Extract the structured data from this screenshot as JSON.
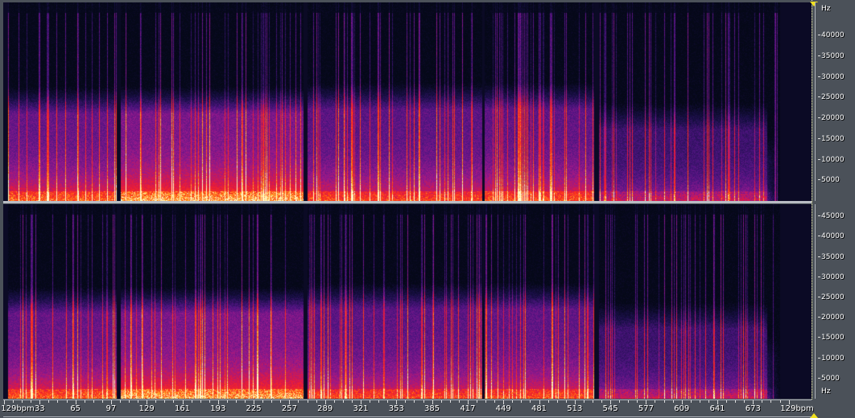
{
  "channels": [
    {
      "axis_unit": "Hz",
      "axis_ticks": [
        "40000",
        "35000",
        "30000",
        "25000",
        "20000",
        "15000",
        "10000",
        "5000"
      ]
    },
    {
      "axis_unit": "Hz",
      "axis_ticks": [
        "45000",
        "40000",
        "35000",
        "30000",
        "25000",
        "20000",
        "15000",
        "10000",
        "5000"
      ]
    }
  ],
  "ruler": {
    "tempo_left": "129bpm",
    "tempo_right": "129bpm",
    "bars": [
      "33",
      "65",
      "97",
      "129",
      "161",
      "193",
      "225",
      "257",
      "289",
      "321",
      "353",
      "385",
      "417",
      "449",
      "481",
      "513",
      "545",
      "577",
      "609",
      "641",
      "673"
    ]
  },
  "colors": {
    "background": "#4b5159",
    "cursor": "#ffffb0",
    "marker": "#f0e020"
  }
}
